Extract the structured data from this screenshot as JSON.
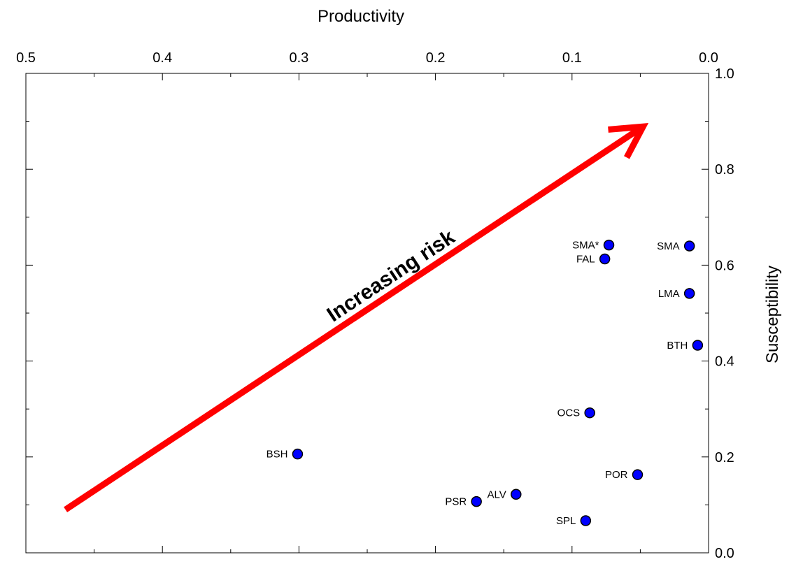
{
  "chart_data": {
    "type": "scatter",
    "title": "",
    "xlabel": "Productivity",
    "ylabel": "Susceptibility",
    "x_axis_position": "top",
    "x_reversed": true,
    "y_axis_position": "right",
    "xlim": [
      0.0,
      0.5
    ],
    "ylim": [
      0.0,
      1.0
    ],
    "x_ticks": [
      0.5,
      0.4,
      0.3,
      0.2,
      0.1,
      0.0
    ],
    "x_tick_labels": [
      "0.5",
      "0.4",
      "0.3",
      "0.2",
      "0.1",
      "0.0"
    ],
    "y_ticks": [
      0.0,
      0.2,
      0.4,
      0.6,
      0.8,
      1.0
    ],
    "y_tick_labels": [
      "0.0",
      "0.2",
      "0.4",
      "0.6",
      "0.8",
      "1.0"
    ],
    "grid": false,
    "legend": "none",
    "marker_color": "#0000ff",
    "points": [
      {
        "label": "SMA*",
        "x": 0.073,
        "y": 0.642
      },
      {
        "label": "FAL",
        "x": 0.076,
        "y": 0.613
      },
      {
        "label": "SMA",
        "x": 0.014,
        "y": 0.64
      },
      {
        "label": "LMA",
        "x": 0.014,
        "y": 0.541
      },
      {
        "label": "BTH",
        "x": 0.008,
        "y": 0.433
      },
      {
        "label": "OCS",
        "x": 0.087,
        "y": 0.292
      },
      {
        "label": "BSH",
        "x": 0.301,
        "y": 0.206
      },
      {
        "label": "POR",
        "x": 0.052,
        "y": 0.163
      },
      {
        "label": "ALV",
        "x": 0.141,
        "y": 0.122
      },
      {
        "label": "PSR",
        "x": 0.17,
        "y": 0.107
      },
      {
        "label": "SPL",
        "x": 0.09,
        "y": 0.067
      }
    ],
    "annotations": [
      {
        "text": "Increasing risk",
        "type": "arrow",
        "color": "#ff0000",
        "from": [
          0.471,
          0.09
        ],
        "to": [
          0.048,
          0.889
        ]
      }
    ]
  }
}
